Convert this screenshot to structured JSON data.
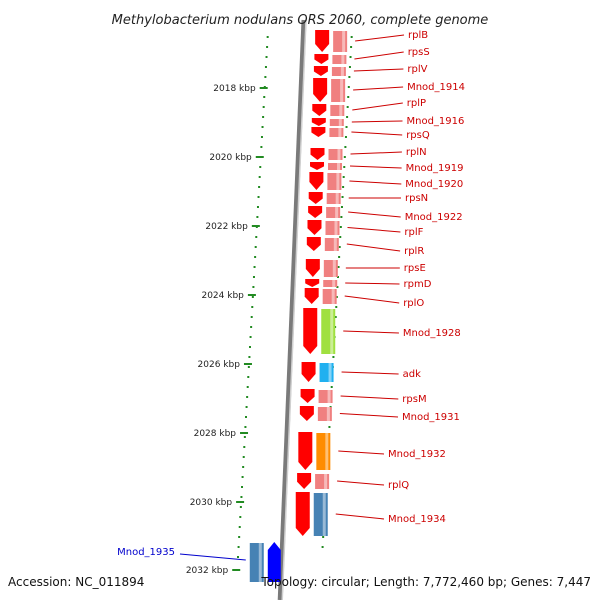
{
  "title": "Methylobacterium nodulans ORS 2060, complete genome",
  "footer": {
    "accession": "Accession: NC_011894",
    "topology": "Topology: circular; Length: 7,772,460 bp; Genes: 7,447"
  },
  "scale": {
    "unit": "kbp",
    "ticks": [
      "2018 kbp",
      "2020 kbp",
      "2022 kbp",
      "2024 kbp",
      "2026 kbp",
      "2028 kbp",
      "2030 kbp",
      "2032 kbp"
    ]
  },
  "colors": {
    "forward_gene": "#ff0000",
    "cds": "#f08080",
    "lime": "#a0e040",
    "cyan": "#20b0f0",
    "orange": "#ff8c00",
    "steelblue": "#4682b4",
    "reverse_gene": "#0000ff",
    "label_forward": "#cc0000",
    "label_reverse": "#0000cc",
    "tick": "#228b22"
  },
  "genes": [
    {
      "name": "rplB",
      "strand": "+",
      "color": "cds"
    },
    {
      "name": "rpsS",
      "strand": "+",
      "color": "cds"
    },
    {
      "name": "rplV",
      "strand": "+",
      "color": "cds"
    },
    {
      "name": "Mnod_1914",
      "strand": "+",
      "color": "cds"
    },
    {
      "name": "rplP",
      "strand": "+",
      "color": "cds"
    },
    {
      "name": "Mnod_1916",
      "strand": "+",
      "color": "cds"
    },
    {
      "name": "rpsQ",
      "strand": "+",
      "color": "cds"
    },
    {
      "name": "rplN",
      "strand": "+",
      "color": "cds"
    },
    {
      "name": "Mnod_1919",
      "strand": "+",
      "color": "cds"
    },
    {
      "name": "Mnod_1920",
      "strand": "+",
      "color": "cds"
    },
    {
      "name": "rpsN",
      "strand": "+",
      "color": "cds"
    },
    {
      "name": "Mnod_1922",
      "strand": "+",
      "color": "cds"
    },
    {
      "name": "rplF",
      "strand": "+",
      "color": "cds"
    },
    {
      "name": "rplR",
      "strand": "+",
      "color": "cds"
    },
    {
      "name": "rpsE",
      "strand": "+",
      "color": "cds"
    },
    {
      "name": "rpmD",
      "strand": "+",
      "color": "cds"
    },
    {
      "name": "rplO",
      "strand": "+",
      "color": "cds"
    },
    {
      "name": "Mnod_1928",
      "strand": "+",
      "color": "lime"
    },
    {
      "name": "adk",
      "strand": "+",
      "color": "cyan"
    },
    {
      "name": "rpsM",
      "strand": "+",
      "color": "cds"
    },
    {
      "name": "Mnod_1931",
      "strand": "+",
      "color": "cds"
    },
    {
      "name": "Mnod_1932",
      "strand": "+",
      "color": "orange"
    },
    {
      "name": "rplQ",
      "strand": "+",
      "color": "cds"
    },
    {
      "name": "Mnod_1934",
      "strand": "+",
      "color": "steelblue"
    },
    {
      "name": "Mnod_1935",
      "strand": "-",
      "color": "steelblue"
    }
  ]
}
